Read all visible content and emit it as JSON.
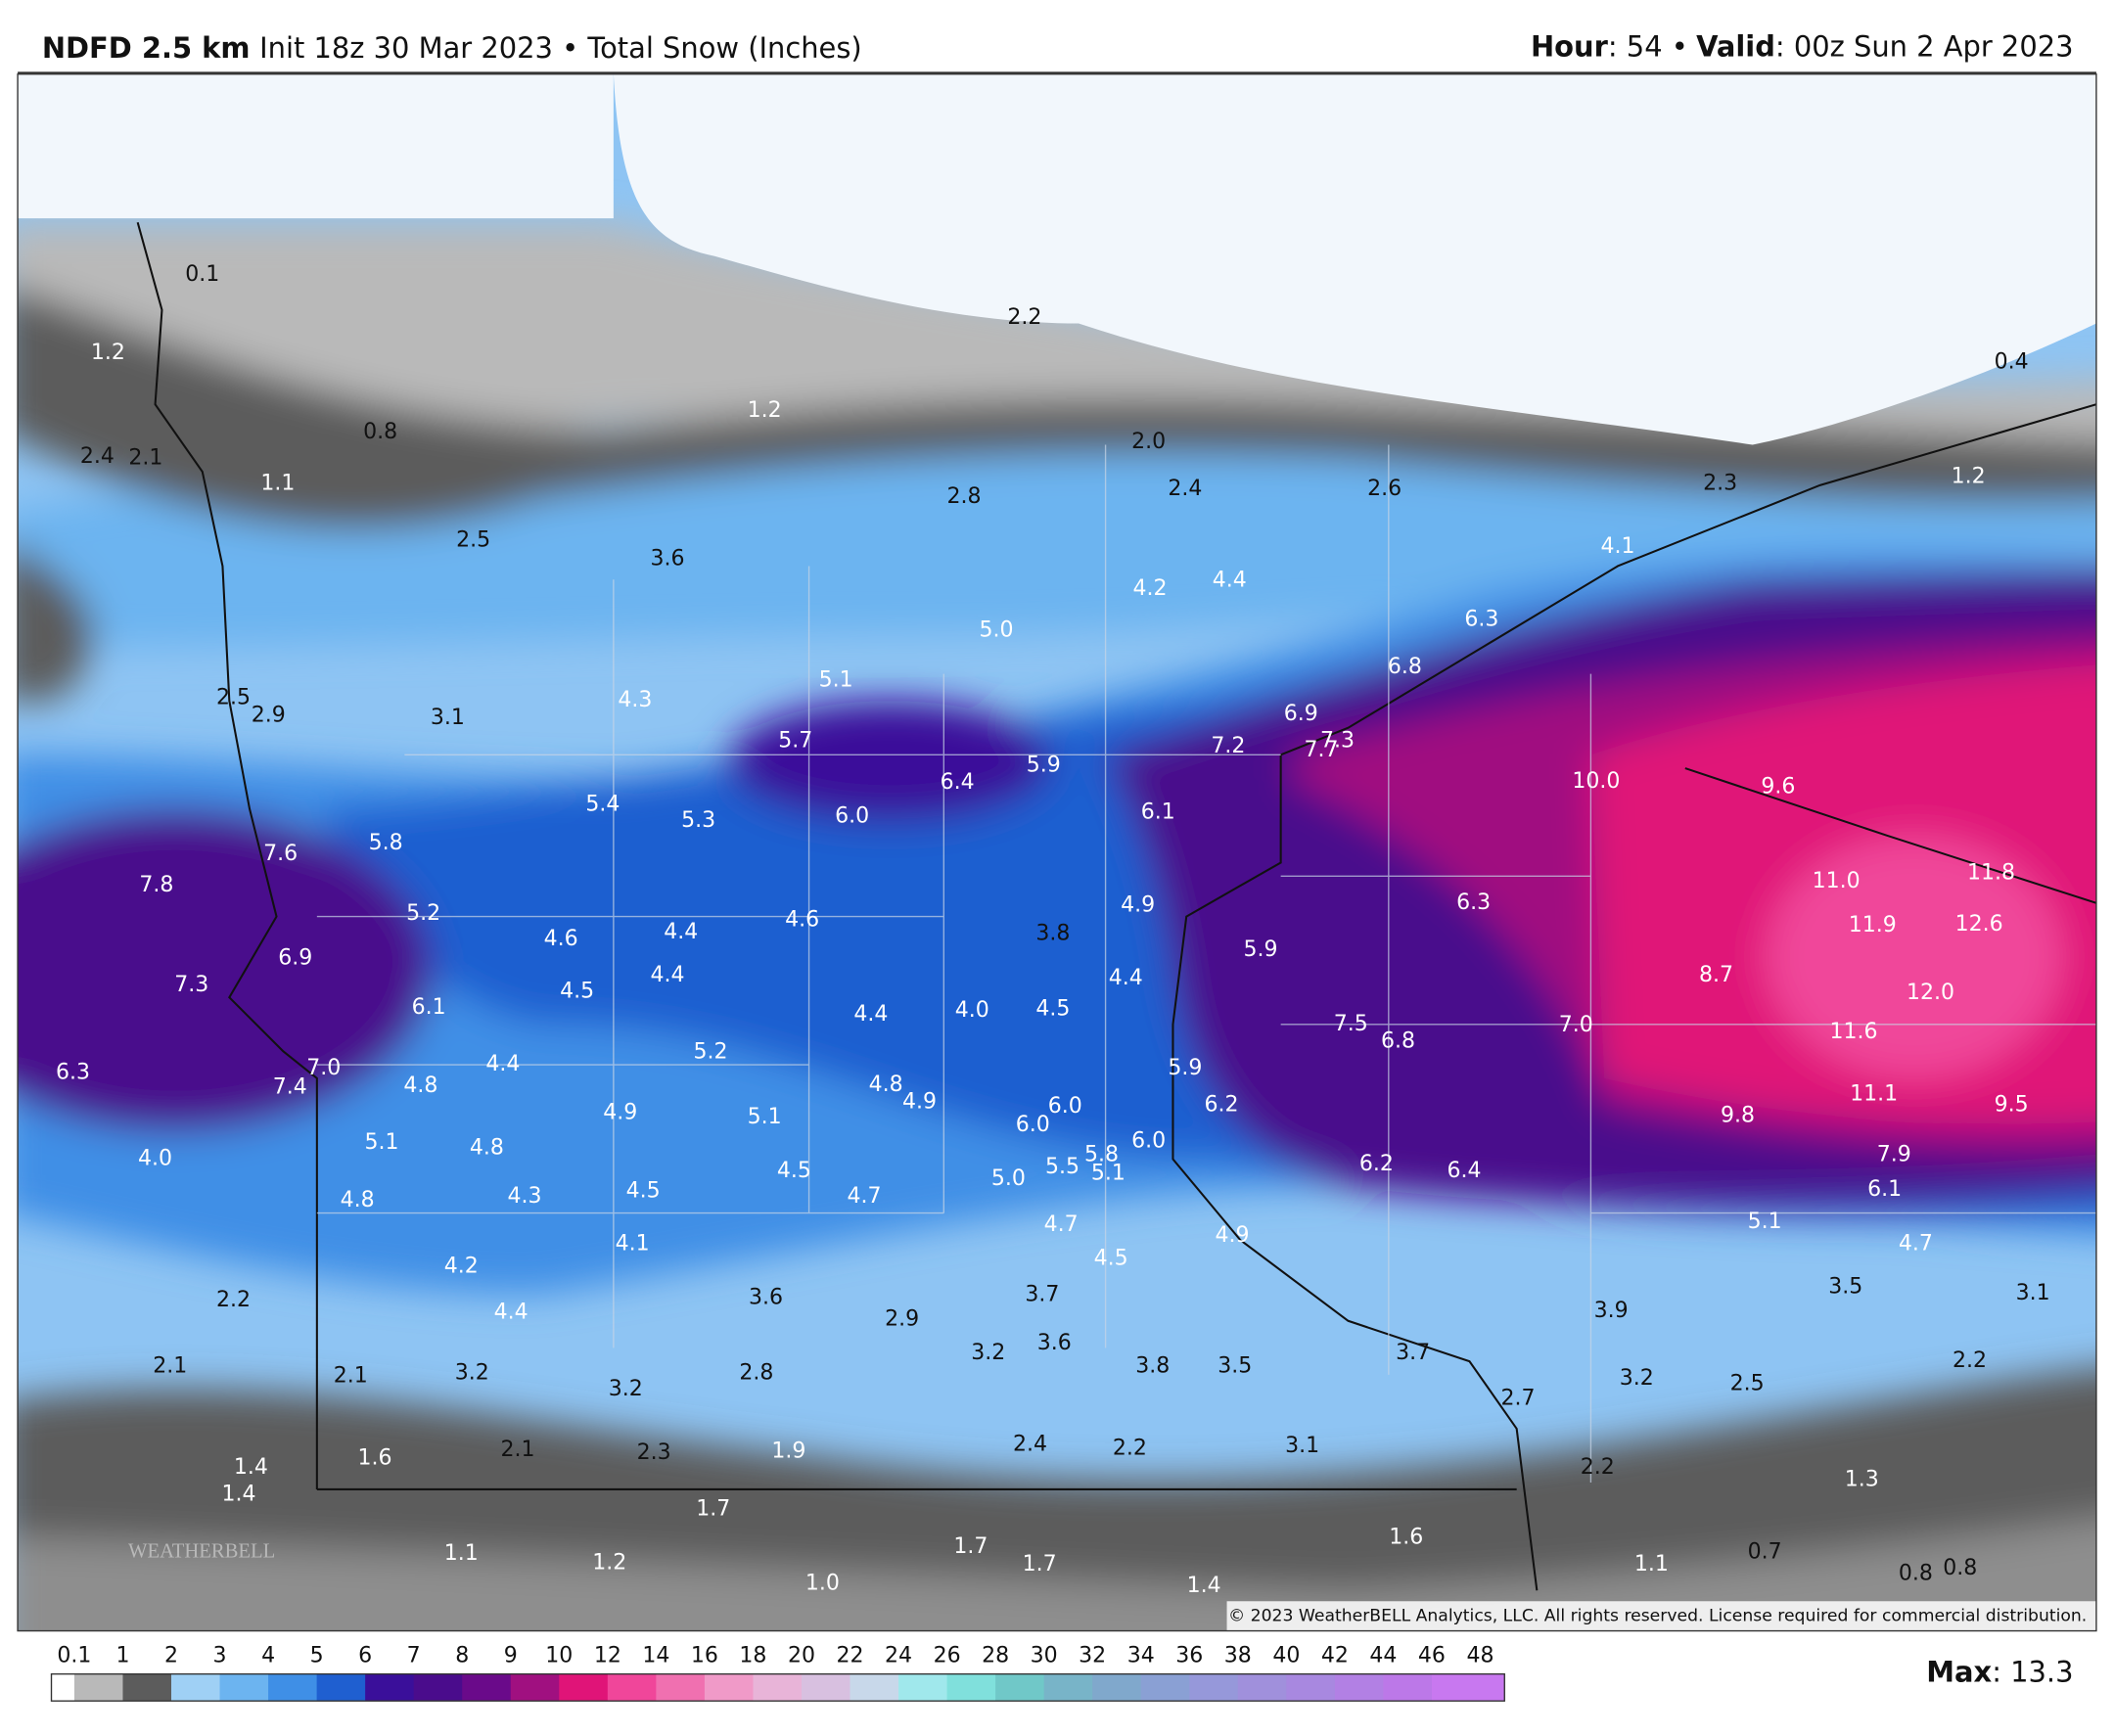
{
  "header": {
    "model": "NDFD 2.5 km",
    "init": "Init 18z 30 Mar 2023 • Total Snow (Inches)",
    "hour_label": "Hour",
    "hour_value": ": 54 •",
    "valid_label": "Valid",
    "valid_value": ": 00z Sun 2 Apr 2023"
  },
  "map": {
    "snow_labels": [
      "0.1",
      "1.2",
      "0.8",
      "1.2",
      "2.4",
      "2.1",
      "1.1",
      "2.5",
      "2.2",
      "2.0",
      "2.4",
      "2.8",
      "2.6",
      "2.3",
      "1.2",
      "0.4",
      "3.6",
      "4.2",
      "4.4",
      "4.1",
      "5.0",
      "6.3",
      "6.8",
      "5.1",
      "2.5",
      "2.9",
      "3.1",
      "4.3",
      "6.9",
      "7.3",
      "7.7",
      "7.2",
      "5.7",
      "6.4",
      "5.9",
      "10.0",
      "9.6",
      "5.4",
      "5.3",
      "6.0",
      "6.1",
      "7.6",
      "5.8",
      "7.8",
      "11.0",
      "11.8",
      "5.2",
      "4.6",
      "4.4",
      "4.6",
      "3.8",
      "4.9",
      "6.3",
      "11.9",
      "12.6",
      "6.9",
      "7.3",
      "5.9",
      "8.7",
      "4.5",
      "4.4",
      "4.4",
      "6.1",
      "12.0",
      "4.4",
      "4.0",
      "4.5",
      "7.5",
      "6.8",
      "7.0",
      "11.6",
      "6.3",
      "7.0",
      "7.4",
      "4.8",
      "4.4",
      "5.2",
      "5.9",
      "4.8",
      "4.9",
      "11.1",
      "9.5",
      "4.9",
      "5.1",
      "6.0",
      "6.2",
      "6.0",
      "9.8",
      "5.1",
      "4.8",
      "6.0",
      "5.8",
      "5.5",
      "5.1",
      "7.9",
      "4.0",
      "6.2",
      "6.4",
      "4.5",
      "5.0",
      "4.5",
      "4.7",
      "4.3",
      "4.8",
      "6.1",
      "4.7",
      "5.1",
      "4.9",
      "4.1",
      "4.7",
      "4.2",
      "4.5",
      "2.2",
      "3.6",
      "3.7",
      "3.5",
      "3.1",
      "4.4",
      "2.9",
      "3.9",
      "3.2",
      "3.6",
      "3.7",
      "2.2",
      "2.1",
      "2.1",
      "3.2",
      "2.8",
      "3.8",
      "3.5",
      "3.2",
      "3.2",
      "2.5",
      "2.7",
      "2.4",
      "2.2",
      "3.1",
      "2.1",
      "2.3",
      "1.9",
      "1.6",
      "1.4",
      "1.4",
      "2.2",
      "1.3",
      "1.7",
      "1.1",
      "1.2",
      "1.7",
      "1.7",
      "1.6",
      "1.0",
      "1.4",
      "1.1",
      "0.7",
      "0.8",
      "0.8"
    ],
    "logo": "WEATHERBELL",
    "copyright": "© 2023 WeatherBELL Analytics, LLC. All rights reserved. License required for commercial distribution."
  },
  "legend": {
    "ticks": [
      0.1,
      1,
      2,
      3,
      4,
      5,
      6,
      7,
      8,
      9,
      10,
      12,
      14,
      16,
      18,
      20,
      22,
      24,
      26,
      28,
      30,
      32,
      34,
      36,
      38,
      40,
      42,
      44,
      46,
      48
    ],
    "colors": [
      "#b9b9b9",
      "#5c5c5c",
      "#9fd0f5",
      "#6cb4f0",
      "#3f8fe6",
      "#1f5fd0",
      "#3a0f9a",
      "#4a0c8c",
      "#6a0a8a",
      "#a01080",
      "#e01478",
      "#f0469a",
      "#f070b0",
      "#f09ac8",
      "#e8b4d8",
      "#d8c0e0",
      "#c8d8ea",
      "#a0e8ec",
      "#80e0dc",
      "#70c8c8",
      "#78b4c8",
      "#80a8cc",
      "#8aa0d4",
      "#9698da",
      "#a090dc",
      "#a888e0",
      "#b280e4",
      "#bc78e8",
      "#c878f0"
    ],
    "max_label": "Max",
    "max_value": ": 13.3"
  }
}
